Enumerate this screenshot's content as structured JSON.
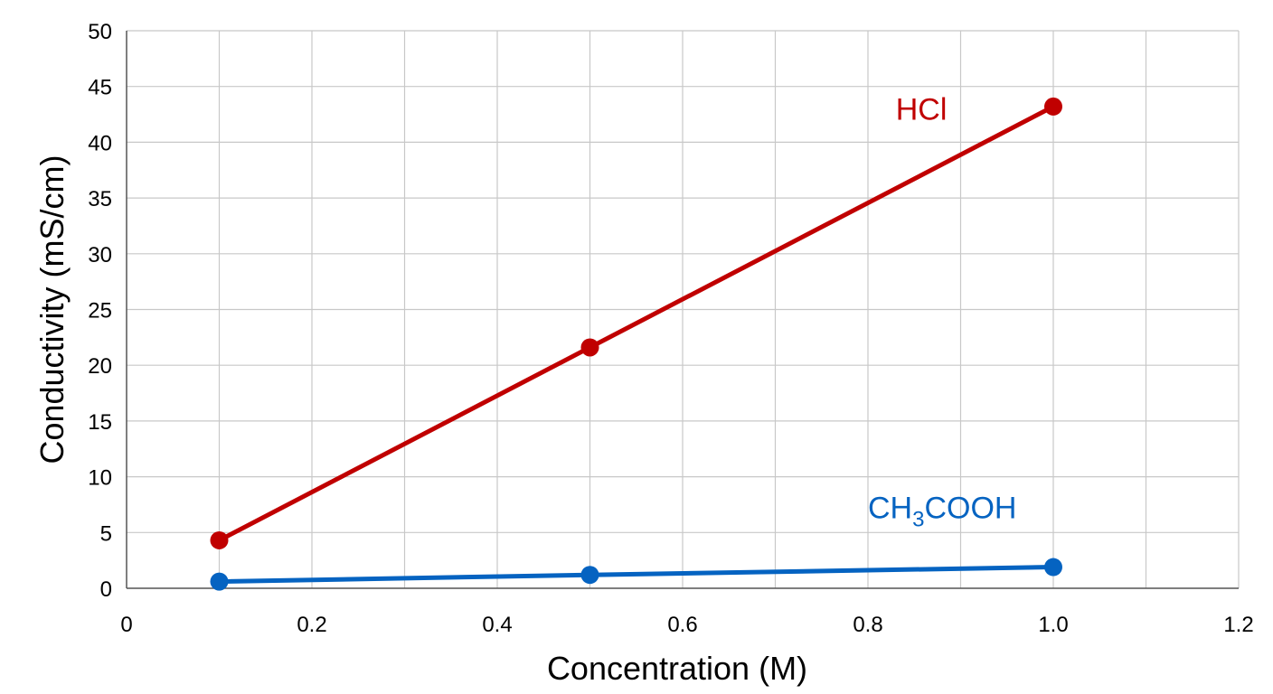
{
  "chart_data": {
    "type": "line",
    "title": "",
    "xlabel": "Concentration (M)",
    "ylabel": "Conductivity (mS/cm)",
    "xlim": [
      0,
      1.2
    ],
    "ylim": [
      0,
      50
    ],
    "xticks": [
      0,
      0.2,
      0.4,
      0.6,
      0.8,
      1.0,
      1.2
    ],
    "xtick_labels": [
      "0",
      "0.2",
      "0.4",
      "0.6",
      "0.8",
      "1.0",
      "1.2"
    ],
    "yticks": [
      0,
      5,
      10,
      15,
      20,
      25,
      30,
      35,
      40,
      45,
      50
    ],
    "ytick_labels": [
      "0",
      "5",
      "10",
      "15",
      "20",
      "25",
      "30",
      "35",
      "40",
      "45",
      "50"
    ],
    "x_minor_gridlines": [
      0.1,
      0.3,
      0.5,
      0.7,
      0.9,
      1.1
    ],
    "grid": true,
    "legend": "none",
    "series": [
      {
        "name": "HCl",
        "label_main": "HCl",
        "label_sub": "",
        "label_tail": "",
        "color": "#c00000",
        "x": [
          0.1,
          0.5,
          1.0
        ],
        "y": [
          4.3,
          21.6,
          43.2
        ],
        "label_anchor": {
          "x": 0.83,
          "y": 42.0
        }
      },
      {
        "name": "CH3COOH",
        "label_main": "CH",
        "label_sub": "3",
        "label_tail": "COOH",
        "color": "#0563c1",
        "x": [
          0.1,
          0.5,
          1.0
        ],
        "y": [
          0.6,
          1.2,
          1.9
        ],
        "label_anchor": {
          "x": 0.8,
          "y": 6.3
        }
      }
    ]
  }
}
